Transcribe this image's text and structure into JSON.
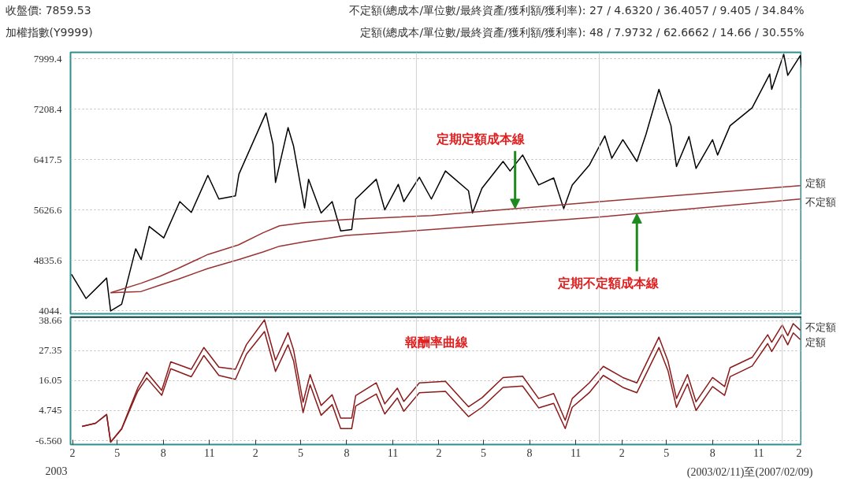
{
  "chart_data": [
    {
      "type": "line",
      "title": "收盤價: 7859.53",
      "subtitle": "加權指數(Y9999)",
      "annotations": [
        "不定額(總成本/單位數/最終資產/獲利額/獲利率): 27 / 4.6320 / 36.4057 / 9.405 / 34.84%",
        "定額(總成本/單位數/最終資產/獲利額/獲利率): 48 / 7.9732 / 62.6662 / 14.66 / 30.55%",
        {
          "text": "定期定額成本線",
          "x": "2005-07-17",
          "y": 5650
        },
        {
          "text": "定期不定額成本線",
          "x": "2006-03-17",
          "y": 5570
        }
      ],
      "xlim": [
        "2003-02-11",
        "2007-02-09"
      ],
      "ylim": [
        4000,
        8100
      ],
      "yticks": [
        {
          "value": 4044,
          "label": "4044."
        },
        4835.6,
        5626.6,
        6417.5,
        7208.4,
        7999.4
      ],
      "tick_labels": "y",
      "grid": "y",
      "legend": false,
      "ref_lines": [
        {
          "axis": "x",
          "value": "2004-01-01",
          "color": "#d0d0d0"
        },
        {
          "axis": "x",
          "value": "2005-01-01",
          "color": "#d0d0d0"
        },
        {
          "axis": "x",
          "value": "2006-01-01",
          "color": "#d0d0d0"
        },
        {
          "axis": "x",
          "value": "2007-01-01",
          "color": "#d0d0d0"
        }
      ],
      "series": [
        {
          "type": "line",
          "color": "#000000",
          "x": [
            "2003-02-13",
            "2003-03-14",
            "2003-04-24",
            "2003-05-02",
            "2003-05-24",
            "2003-06-21",
            "2003-07-02",
            "2003-07-18",
            "2003-08-16",
            "2003-09-17",
            "2003-10-10",
            "2003-11-12",
            "2003-12-04",
            "2004-01-06",
            "2004-01-13",
            "2004-03-07",
            "2004-03-21",
            "2004-03-26",
            "2004-04-20",
            "2004-05-01",
            "2004-05-23",
            "2004-05-31",
            "2004-06-25",
            "2004-07-17",
            "2004-08-03",
            "2004-08-25",
            "2004-09-02",
            "2004-10-13",
            "2004-10-30",
            "2004-11-26",
            "2004-12-07",
            "2005-01-07",
            "2005-01-31",
            "2005-02-28",
            "2005-04-15",
            "2005-04-23",
            "2005-05-12",
            "2005-06-23",
            "2005-07-07",
            "2005-08-01",
            "2005-09-02",
            "2005-10-02",
            "2005-10-22",
            "2005-11-08",
            "2005-12-12",
            "2006-01-12",
            "2006-01-26",
            "2006-02-17",
            "2006-03-17",
            "2006-04-04",
            "2006-04-30",
            "2006-05-24",
            "2006-06-04",
            "2006-06-29",
            "2006-07-13",
            "2006-08-15",
            "2006-08-25",
            "2006-09-19",
            "2006-11-02",
            "2006-12-07",
            "2006-12-11",
            "2007-01-04",
            "2007-01-12",
            "2007-02-06",
            "2007-02-09"
          ],
          "values": [
            4620,
            4240,
            4560,
            4044,
            4150,
            5020,
            4850,
            5370,
            5190,
            5760,
            5590,
            6170,
            5800,
            5850,
            6190,
            7150,
            6660,
            6060,
            6920,
            6630,
            5660,
            6110,
            5580,
            5760,
            5300,
            5320,
            5800,
            6110,
            5630,
            6030,
            5760,
            6140,
            5800,
            6240,
            5930,
            5580,
            5970,
            6390,
            6240,
            6490,
            6020,
            6130,
            5650,
            6020,
            6330,
            6790,
            6440,
            6730,
            6390,
            6810,
            7520,
            6950,
            6310,
            6780,
            6280,
            6730,
            6490,
            6950,
            7230,
            7760,
            7520,
            8070,
            7740,
            8050,
            7860
          ]
        },
        {
          "type": "line",
          "name": "定額",
          "color": "#993333",
          "x": [
            "2003-05-02",
            "2003-07-02",
            "2003-08-09",
            "2003-09-13",
            "2003-11-12",
            "2004-01-12",
            "2004-03-01",
            "2004-04-03",
            "2004-05-23",
            "2004-08-14",
            "2005-01-31",
            "2005-07-17",
            "2006-01-03",
            "2007-02-06"
          ],
          "values": [
            4330,
            4480,
            4590,
            4710,
            4930,
            5080,
            5270,
            5380,
            5430,
            5480,
            5540,
            5650,
            5760,
            6010
          ]
        },
        {
          "type": "line",
          "name": "不定額",
          "color": "#993333",
          "x": [
            "2003-05-02",
            "2003-07-02",
            "2003-08-09",
            "2003-09-13",
            "2003-11-12",
            "2004-01-12",
            "2004-03-01",
            "2004-04-03",
            "2004-05-23",
            "2004-08-14",
            "2005-01-31",
            "2006-01-03",
            "2006-03-17",
            "2007-02-06"
          ],
          "values": [
            4330,
            4350,
            4450,
            4540,
            4710,
            4850,
            4970,
            5060,
            5130,
            5230,
            5320,
            5520,
            5570,
            5800
          ]
        }
      ]
    },
    {
      "type": "line",
      "annotations": [
        "報酬率曲線",
        "2003",
        "(2003/02/11)至(2007/02/09)"
      ],
      "xlim": [
        "2003-02-11",
        "2007-02-09"
      ],
      "ylim": [
        -8,
        40
      ],
      "xticks": [
        {
          "value": "2003-02-15",
          "label": "2"
        },
        {
          "value": "2003-05-15",
          "label": "5"
        },
        {
          "value": "2003-08-15",
          "label": "8"
        },
        {
          "value": "2003-11-15",
          "label": "11"
        },
        {
          "value": "2004-02-15",
          "label": "2"
        },
        {
          "value": "2004-05-15",
          "label": "5"
        },
        {
          "value": "2004-08-15",
          "label": "8"
        },
        {
          "value": "2004-11-15",
          "label": "11"
        },
        {
          "value": "2005-02-15",
          "label": "2"
        },
        {
          "value": "2005-05-15",
          "label": "5"
        },
        {
          "value": "2005-08-15",
          "label": "8"
        },
        {
          "value": "2005-11-15",
          "label": "11"
        },
        {
          "value": "2006-02-15",
          "label": "2"
        },
        {
          "value": "2006-05-15",
          "label": "5"
        },
        {
          "value": "2006-08-15",
          "label": "8"
        },
        {
          "value": "2006-11-15",
          "label": "11"
        },
        {
          "value": "2007-02-09",
          "label": "2"
        }
      ],
      "yticks": [
        {
          "value": -6.56,
          "label": "-6.560"
        },
        4.745,
        16.05,
        27.35,
        38.66
      ],
      "grid": "y",
      "legend": false,
      "ref_lines": [
        {
          "axis": "x",
          "value": "2004-01-01",
          "color": "#d0d0d0"
        },
        {
          "axis": "x",
          "value": "2005-01-01",
          "color": "#d0d0d0"
        },
        {
          "axis": "x",
          "value": "2006-01-01",
          "color": "#d0d0d0"
        },
        {
          "axis": "x",
          "value": "2007-01-01",
          "color": "#d0d0d0"
        }
      ],
      "x": [
        "2003-03-06",
        "2003-04-02",
        "2003-04-24",
        "2003-05-02",
        "2003-05-24",
        "2003-06-25",
        "2003-07-13",
        "2003-08-12",
        "2003-08-30",
        "2003-10-10",
        "2003-11-04",
        "2003-12-04",
        "2004-01-06",
        "2004-01-28",
        "2004-03-04",
        "2004-03-26",
        "2004-04-20",
        "2004-05-01",
        "2004-05-20",
        "2004-06-03",
        "2004-06-25",
        "2004-07-17",
        "2004-08-03",
        "2004-08-25",
        "2004-09-02",
        "2004-10-13",
        "2004-10-30",
        "2004-11-24",
        "2004-12-07",
        "2005-01-07",
        "2005-02-28",
        "2005-04-15",
        "2005-05-12",
        "2005-06-23",
        "2005-08-01",
        "2005-09-02",
        "2005-10-02",
        "2005-10-25",
        "2005-11-08",
        "2005-12-12",
        "2006-01-09",
        "2006-02-17",
        "2006-03-17",
        "2006-04-30",
        "2006-05-18",
        "2006-06-04",
        "2006-06-26",
        "2006-07-13",
        "2006-08-15",
        "2006-09-08",
        "2006-09-19",
        "2006-11-02",
        "2006-12-03",
        "2006-12-11",
        "2007-01-01",
        "2007-01-12",
        "2007-01-23",
        "2007-02-06"
      ],
      "series": [
        {
          "name": "不定額",
          "color": "#8b1a1a",
          "values": [
            -1.2,
            0.0,
            3.3,
            -7.1,
            -2.0,
            13.2,
            19.2,
            12.4,
            23.1,
            20.3,
            28.5,
            21.1,
            20.3,
            29.6,
            38.9,
            23.7,
            34.1,
            27.6,
            7.9,
            18.3,
            6.7,
            10.7,
            1.9,
            1.9,
            10.4,
            15.2,
            7.3,
            13.2,
            8.2,
            15.2,
            15.8,
            6.2,
            9.6,
            17.2,
            17.7,
            9.3,
            11.2,
            1.1,
            9.3,
            15.2,
            21.4,
            17.2,
            15.2,
            32.4,
            23.4,
            9.3,
            18.3,
            8.1,
            17.2,
            13.8,
            20.9,
            24.8,
            33.3,
            30.5,
            37.0,
            33.0,
            37.5,
            35.0
          ]
        },
        {
          "name": "定額",
          "color": "#8b1a1a",
          "values": [
            -1.2,
            0.0,
            3.3,
            -7.1,
            -2.2,
            12.0,
            17.0,
            10.5,
            20.5,
            17.5,
            25.5,
            18.0,
            16.5,
            26.0,
            34.5,
            19.5,
            29.5,
            23.5,
            4.0,
            14.5,
            3.0,
            7.0,
            -2.0,
            -2.0,
            6.5,
            11.0,
            3.5,
            9.5,
            4.5,
            11.5,
            12.0,
            2.5,
            6.0,
            13.5,
            14.0,
            5.8,
            7.5,
            -2.0,
            6.0,
            11.5,
            18.0,
            13.5,
            11.5,
            28.5,
            19.8,
            6.0,
            14.8,
            4.8,
            13.8,
            10.5,
            17.5,
            21.5,
            30.0,
            27.0,
            33.5,
            29.5,
            34.0,
            31.5
          ]
        }
      ]
    }
  ]
}
